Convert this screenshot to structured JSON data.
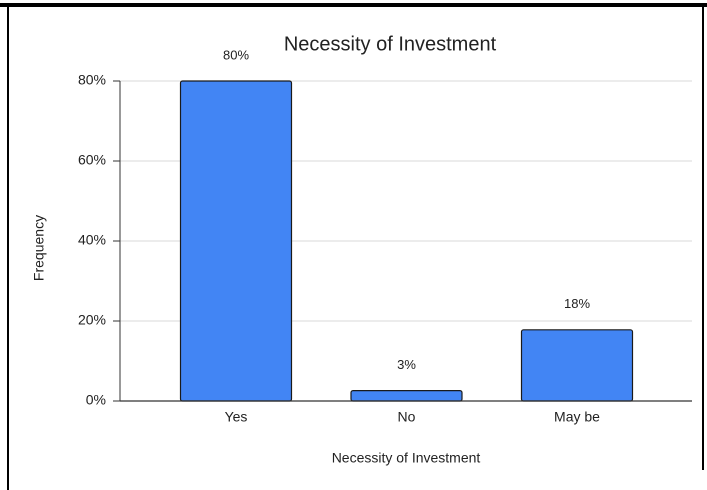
{
  "chart_data": {
    "type": "bar",
    "title": "Necessity of Investment",
    "x_label": "Necessity of Investment",
    "y_label": "Frequency",
    "categories": [
      "Yes",
      "No",
      "May be"
    ],
    "values": [
      80,
      2.6,
      17.8
    ],
    "value_labels": [
      "80%",
      "3%",
      "18%"
    ],
    "color": "#4285f4",
    "ylim": [
      0,
      80
    ],
    "yticks": [
      {
        "value": 0,
        "label": "0%"
      },
      {
        "value": 20,
        "label": "20%"
      },
      {
        "value": 40,
        "label": "40%"
      },
      {
        "value": 60,
        "label": "60%"
      },
      {
        "value": 80,
        "label": "80%"
      }
    ],
    "grid": true
  }
}
